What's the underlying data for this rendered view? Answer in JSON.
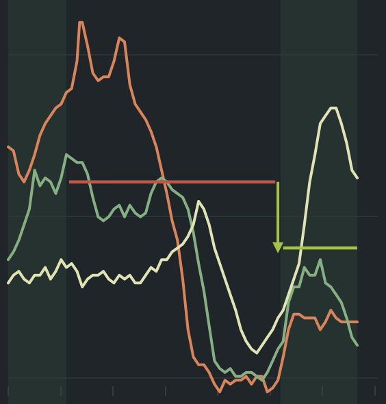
{
  "chart_data": {
    "type": "line",
    "title": "",
    "xlabel": "",
    "ylabel": "",
    "x_range": [
      0,
      132
    ],
    "ylim": [
      0,
      100
    ],
    "grid": true,
    "legend": "none",
    "colors": {
      "background": "#1f2528",
      "band": "#263230",
      "grid": "#2c3a3a",
      "tick": "#3a4646"
    },
    "bands": [
      {
        "x_start": 0,
        "x_end": 22
      },
      {
        "x_start": 103,
        "x_end": 132
      }
    ],
    "series": [
      {
        "color": "#d9845a",
        "x": [
          0,
          2,
          4,
          6,
          8,
          10,
          12,
          14,
          16,
          18,
          20,
          22,
          24,
          26,
          27,
          28,
          30,
          32,
          34,
          36,
          38,
          40,
          42,
          44,
          46,
          48,
          50,
          52,
          54,
          56,
          58,
          60,
          62,
          64,
          66,
          68,
          70,
          72,
          74,
          76,
          78,
          80,
          82,
          84,
          86,
          88,
          90,
          92,
          94,
          96,
          98,
          100,
          102,
          104,
          106,
          108,
          110,
          112,
          114,
          116,
          118,
          120,
          122,
          124,
          126,
          128,
          130,
          132
        ],
        "values": [
          64,
          63,
          57,
          55,
          58,
          62,
          67,
          70,
          72,
          74,
          75,
          78,
          79,
          86,
          96,
          96,
          90,
          83,
          81,
          82,
          82,
          86,
          92,
          91,
          80,
          75,
          73,
          71,
          68,
          64,
          58,
          52,
          45,
          40,
          30,
          17,
          10,
          8,
          8,
          6,
          3,
          1,
          4,
          3,
          4,
          4,
          5,
          3,
          5,
          5,
          1,
          2,
          4,
          10,
          17,
          21,
          21,
          20,
          20,
          20,
          17,
          19,
          22,
          20,
          19,
          19,
          19,
          19
        ]
      },
      {
        "color": "#86b083",
        "x": [
          0,
          2,
          4,
          6,
          8,
          10,
          12,
          14,
          16,
          18,
          20,
          22,
          24,
          26,
          28,
          30,
          32,
          34,
          36,
          38,
          40,
          42,
          44,
          46,
          48,
          50,
          52,
          54,
          56,
          58,
          60,
          62,
          64,
          66,
          68,
          70,
          72,
          74,
          76,
          78,
          80,
          82,
          84,
          86,
          88,
          90,
          92,
          94,
          96,
          98,
          100,
          102,
          104,
          106,
          108,
          110,
          112,
          114,
          116,
          118,
          120,
          122,
          124,
          126,
          128,
          130,
          132
        ],
        "values": [
          35,
          37,
          40,
          44,
          48,
          58,
          54,
          56,
          55,
          52,
          56,
          62,
          61,
          60,
          60,
          57,
          51,
          46,
          45,
          46,
          48,
          49,
          46,
          49,
          47,
          46,
          47,
          52,
          55,
          56,
          55,
          53,
          52,
          51,
          48,
          42,
          34,
          27,
          18,
          9,
          7,
          6,
          7,
          5,
          5,
          6,
          6,
          5,
          4,
          6,
          9,
          12,
          14,
          24,
          28,
          28,
          33,
          31,
          31,
          35,
          29,
          28,
          26,
          24,
          20,
          15,
          13
        ]
      },
      {
        "color": "#e0e3b4",
        "x": [
          0,
          2,
          4,
          6,
          8,
          10,
          12,
          14,
          16,
          18,
          20,
          22,
          24,
          26,
          28,
          30,
          32,
          34,
          36,
          38,
          40,
          42,
          44,
          46,
          48,
          50,
          52,
          54,
          56,
          58,
          60,
          62,
          64,
          66,
          68,
          70,
          72,
          74,
          76,
          78,
          80,
          82,
          84,
          86,
          88,
          90,
          92,
          94,
          96,
          98,
          100,
          102,
          104,
          106,
          108,
          110,
          112,
          114,
          116,
          118,
          120,
          122,
          124,
          126,
          128,
          130,
          132
        ],
        "values": [
          29,
          31,
          32,
          30,
          29,
          31,
          31,
          33,
          30,
          32,
          35,
          33,
          34,
          32,
          28,
          30,
          31,
          31,
          32,
          30,
          29,
          31,
          30,
          31,
          29,
          29,
          31,
          33,
          32,
          35,
          35,
          37,
          38,
          39,
          41,
          44,
          50,
          48,
          44,
          38,
          34,
          30,
          26,
          22,
          17,
          14,
          12,
          11,
          13,
          15,
          17,
          20,
          22,
          26,
          30,
          34,
          44,
          55,
          62,
          70,
          72,
          74,
          74,
          70,
          65,
          58,
          56
        ]
      }
    ],
    "reference_lines": [
      {
        "color": "#c8553d",
        "x_start": 23,
        "x_end": 101,
        "y": 55
      },
      {
        "color": "#a6c24a",
        "x_start": 104,
        "x_end": 132,
        "y": 38
      }
    ],
    "arrow": {
      "color": "#a6c24a",
      "x": 102,
      "y_from": 55,
      "y_to": 37
    }
  }
}
